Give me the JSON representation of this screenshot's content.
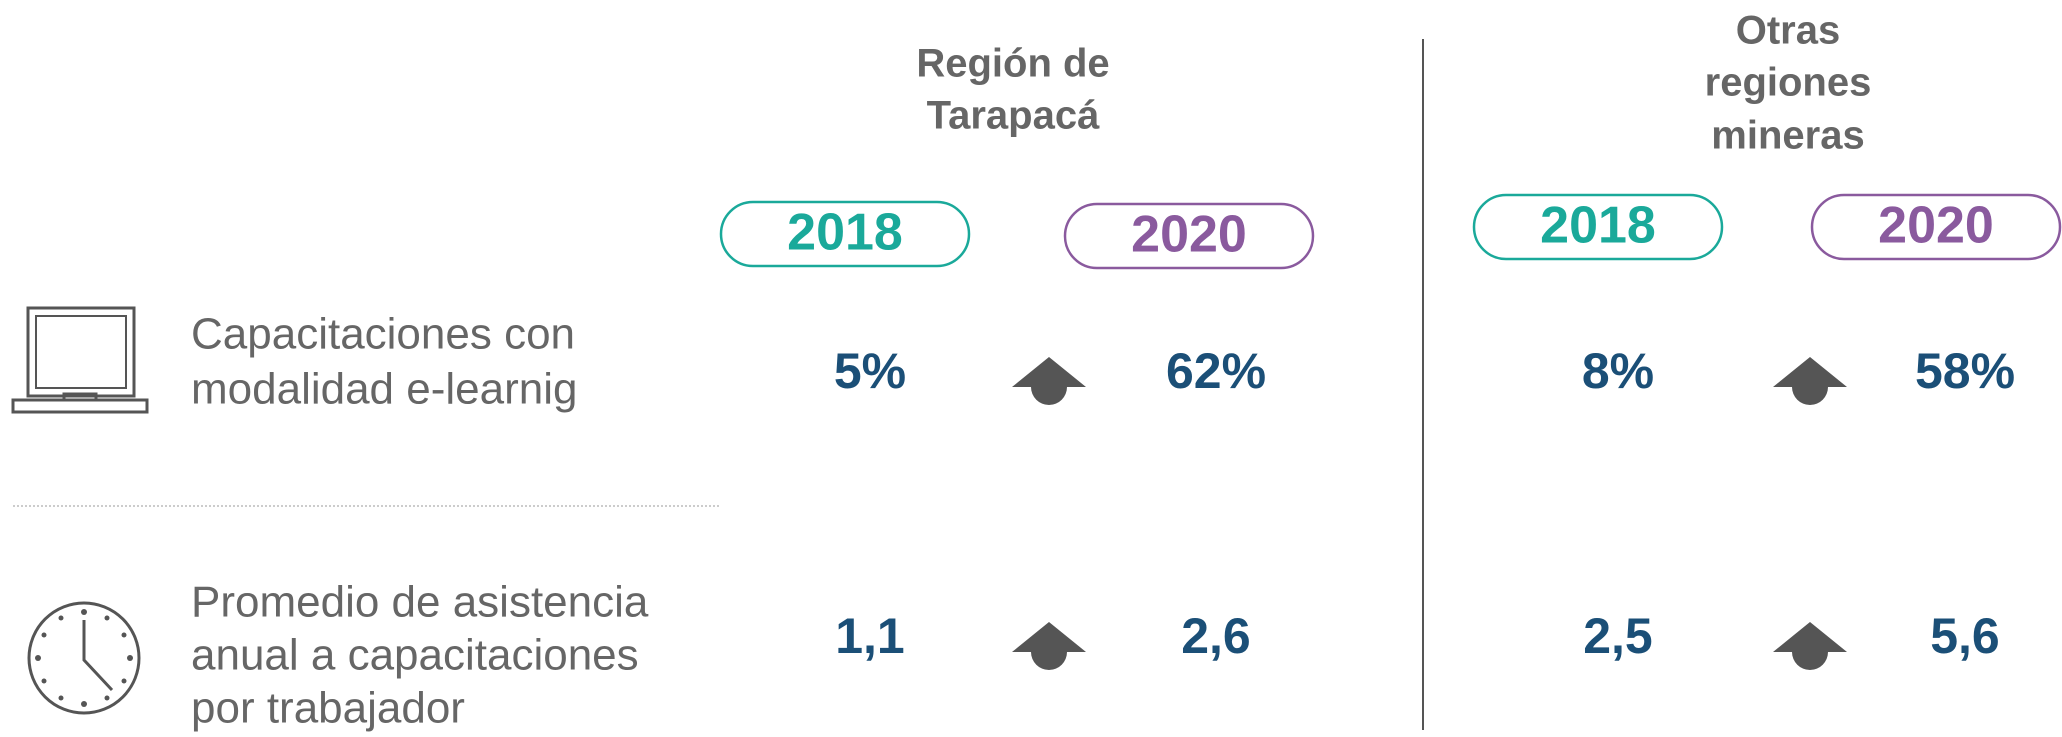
{
  "groups": [
    {
      "title": [
        "Región de",
        "Tarapacá"
      ],
      "years": [
        "2018",
        "2020"
      ]
    },
    {
      "title": [
        "Otras",
        "regiones",
        "mineras"
      ],
      "years": [
        "2018",
        "2020"
      ]
    }
  ],
  "rows": [
    {
      "label": [
        "Capacitaciones con",
        "modalidad e-learnig"
      ],
      "values": [
        [
          "5%",
          "62%"
        ],
        [
          "8%",
          "58%"
        ]
      ]
    },
    {
      "label": [
        "Promedio de asistencia",
        "anual a capacitaciones",
        "por trabajador"
      ],
      "values": [
        [
          "1,1",
          "2,6"
        ],
        [
          "2,5",
          "5,6"
        ]
      ]
    }
  ]
}
